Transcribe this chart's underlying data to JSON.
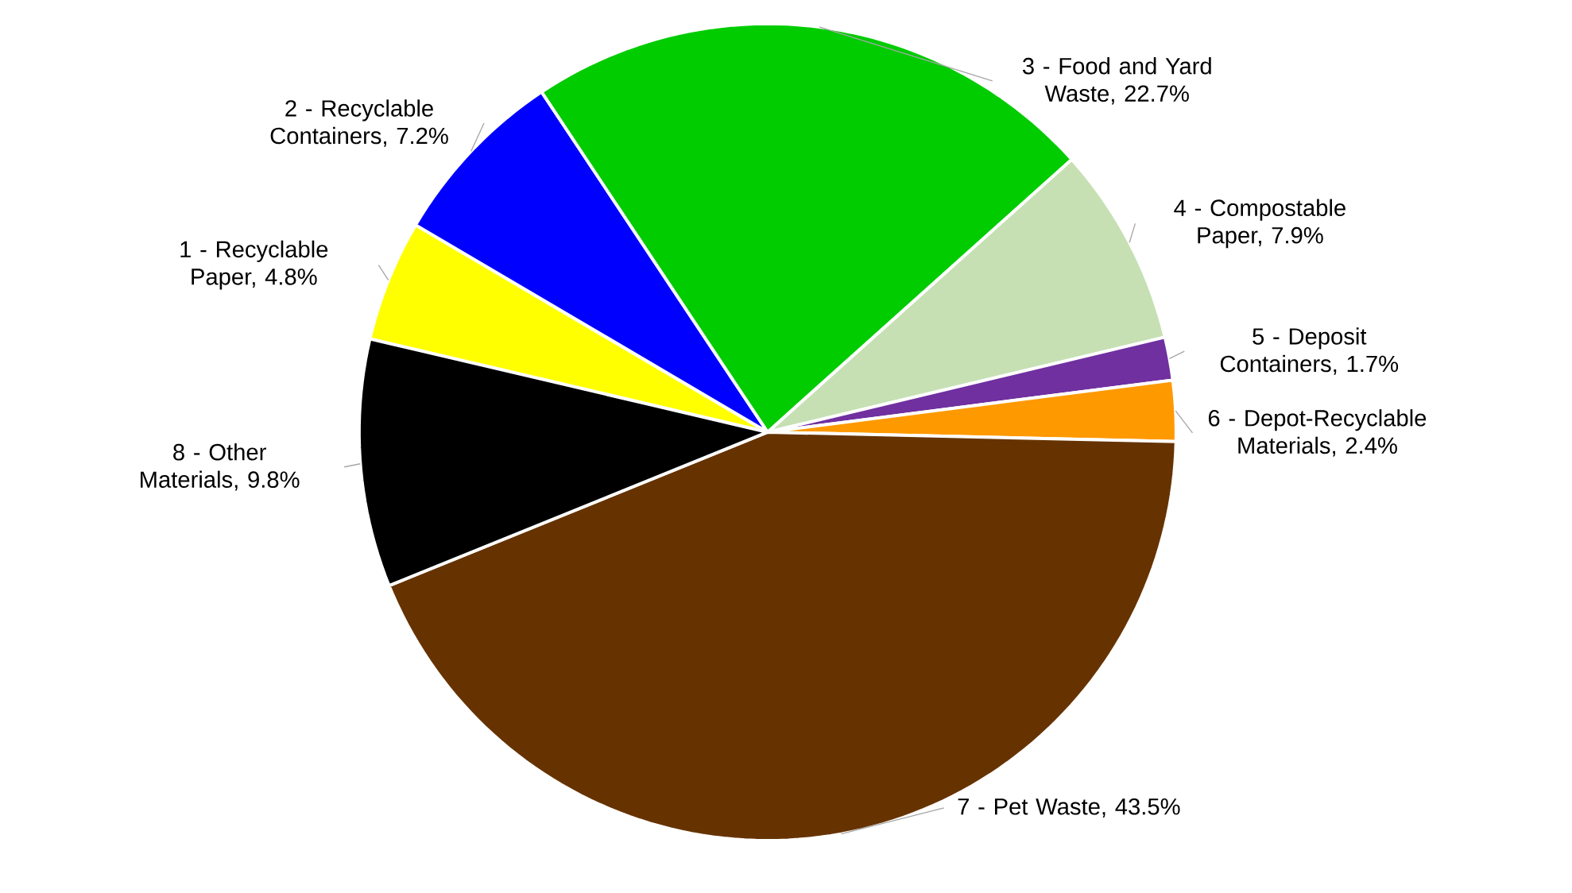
{
  "chart_data": {
    "type": "pie",
    "categories": [
      "1 - Recyclable Paper, 4.8%",
      "2 - Recyclable Containers, 7.2%",
      "3 - Food and Yard Waste, 22.7%",
      "4 - Compostable Paper, 7.9%",
      "5 - Deposit Containers, 1.7%",
      "6 - Depot-Recyclable Materials, 2.4%",
      "7 - Pet Waste, 43.5%",
      "8 - Other Materials, 9.8%"
    ],
    "values": [
      4.8,
      7.2,
      22.7,
      7.9,
      1.7,
      2.4,
      43.5,
      9.8
    ],
    "colors": [
      "#ffff00",
      "#0000ff",
      "#00cc00",
      "#c6e0b4",
      "#7030a0",
      "#ff9900",
      "#663300",
      "#000000"
    ]
  }
}
